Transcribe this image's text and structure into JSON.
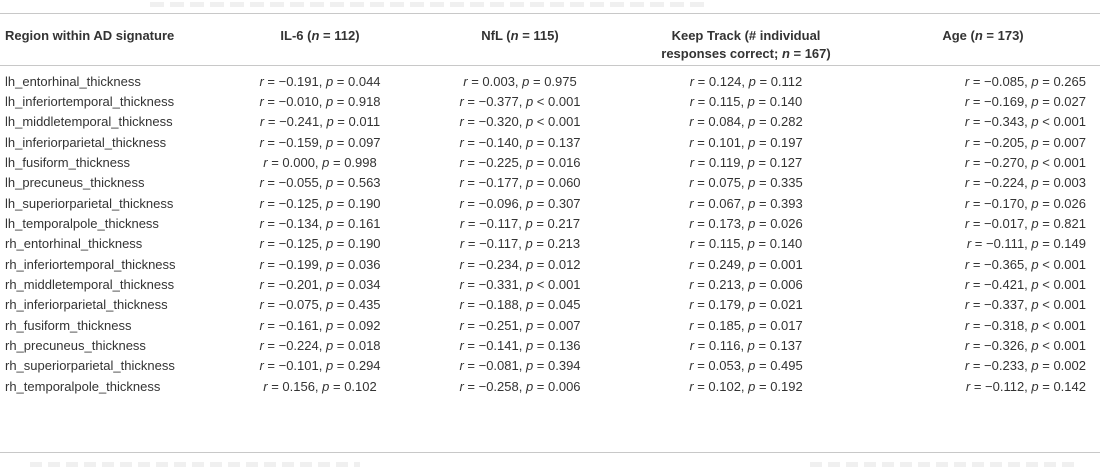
{
  "headers": {
    "region": "Region within AD signature",
    "il6": "IL-6 (n = 112)",
    "nfl": "NfL (n = 115)",
    "keep_track": "Keep Track (# individual responses correct; n = 167)",
    "age": "Age (n = 173)"
  },
  "rows": [
    {
      "region": "lh_entorhinal_thickness",
      "il6": "r = −0.191, p = 0.044",
      "nfl": "r = 0.003, p = 0.975",
      "keep_track": "r = 0.124, p = 0.112",
      "age": "r = −0.085, p = 0.265"
    },
    {
      "region": "lh_inferiortemporal_thickness",
      "il6": "r = −0.010, p = 0.918",
      "nfl": "r = −0.377, p < 0.001",
      "keep_track": "r = 0.115, p = 0.140",
      "age": "r = −0.169, p = 0.027"
    },
    {
      "region": "lh_middletemporal_thickness",
      "il6": "r = −0.241, p = 0.011",
      "nfl": "r = −0.320, p < 0.001",
      "keep_track": "r = 0.084, p = 0.282",
      "age": "r = −0.343, p < 0.001"
    },
    {
      "region": "lh_inferiorparietal_thickness",
      "il6": "r = −0.159, p = 0.097",
      "nfl": "r = −0.140, p = 0.137",
      "keep_track": "r = 0.101, p = 0.197",
      "age": "r = −0.205, p = 0.007"
    },
    {
      "region": "lh_fusiform_thickness",
      "il6": "r = 0.000, p = 0.998",
      "nfl": "r = −0.225, p = 0.016",
      "keep_track": "r = 0.119, p = 0.127",
      "age": "r = −0.270, p < 0.001"
    },
    {
      "region": "lh_precuneus_thickness",
      "il6": "r = −0.055, p = 0.563",
      "nfl": "r = −0.177, p = 0.060",
      "keep_track": "r = 0.075, p = 0.335",
      "age": "r = −0.224, p = 0.003"
    },
    {
      "region": "lh_superiorparietal_thickness",
      "il6": "r = −0.125, p = 0.190",
      "nfl": "r = −0.096, p = 0.307",
      "keep_track": "r = 0.067, p = 0.393",
      "age": "r = −0.170, p = 0.026"
    },
    {
      "region": "lh_temporalpole_thickness",
      "il6": "r = −0.134, p = 0.161",
      "nfl": "r = −0.117, p = 0.217",
      "keep_track": "r = 0.173, p = 0.026",
      "age": "r = −0.017, p = 0.821"
    },
    {
      "region": "rh_entorhinal_thickness",
      "il6": "r = −0.125, p = 0.190",
      "nfl": "r = −0.117, p = 0.213",
      "keep_track": "r = 0.115, p = 0.140",
      "age": "r = −0.111, p = 0.149"
    },
    {
      "region": "rh_inferiortemporal_thickness",
      "il6": "r = −0.199, p = 0.036",
      "nfl": "r = −0.234, p = 0.012",
      "keep_track": "r = 0.249, p = 0.001",
      "age": "r = −0.365, p < 0.001"
    },
    {
      "region": "rh_middletemporal_thickness",
      "il6": "r = −0.201, p = 0.034",
      "nfl": "r = −0.331, p < 0.001",
      "keep_track": "r = 0.213, p = 0.006",
      "age": "r = −0.421, p < 0.001"
    },
    {
      "region": "rh_inferiorparietal_thickness",
      "il6": "r = −0.075, p = 0.435",
      "nfl": "r = −0.188, p = 0.045",
      "keep_track": "r = 0.179, p = 0.021",
      "age": "r = −0.337, p < 0.001"
    },
    {
      "region": "rh_fusiform_thickness",
      "il6": "r = −0.161, p = 0.092",
      "nfl": "r = −0.251, p = 0.007",
      "keep_track": "r = 0.185, p = 0.017",
      "age": "r = −0.318, p < 0.001"
    },
    {
      "region": "rh_precuneus_thickness",
      "il6": "r = −0.224, p = 0.018",
      "nfl": "r = −0.141, p = 0.136",
      "keep_track": "r = 0.116, p = 0.137",
      "age": "r = −0.326, p < 0.001"
    },
    {
      "region": "rh_superiorparietal_thickness",
      "il6": "r = −0.101, p = 0.294",
      "nfl": "r = −0.081, p = 0.394",
      "keep_track": "r = 0.053, p = 0.495",
      "age": "r = −0.233, p = 0.002"
    },
    {
      "region": "rh_temporalpole_thickness",
      "il6": "r = 0.156, p = 0.102",
      "nfl": "r = −0.258, p = 0.006",
      "keep_track": "r = 0.102, p = 0.192",
      "age": "r = −0.112, p = 0.142"
    }
  ]
}
